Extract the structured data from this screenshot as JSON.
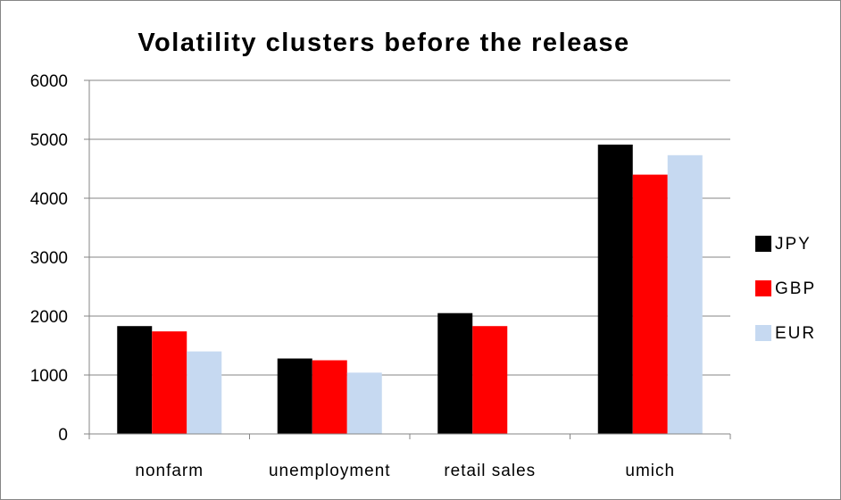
{
  "chart_data": {
    "type": "bar",
    "title": "Volatility clusters before the release",
    "categories": [
      "nonfarm",
      "unemployment",
      "retail sales",
      "umich"
    ],
    "series": [
      {
        "name": "JPY",
        "color": "#000000",
        "values": [
          1830,
          1280,
          2050,
          4910
        ]
      },
      {
        "name": "GBP",
        "color": "#ff0000",
        "values": [
          1740,
          1250,
          1830,
          4400
        ]
      },
      {
        "name": "EUR",
        "color": "#c6d9f1",
        "values": [
          1400,
          1040,
          0,
          4730
        ]
      }
    ],
    "ylim": [
      0,
      6000
    ],
    "yticks": [
      0,
      1000,
      2000,
      3000,
      4000,
      5000,
      6000
    ],
    "xlabel": "",
    "ylabel": "",
    "grid": true,
    "legend_position": "right"
  }
}
